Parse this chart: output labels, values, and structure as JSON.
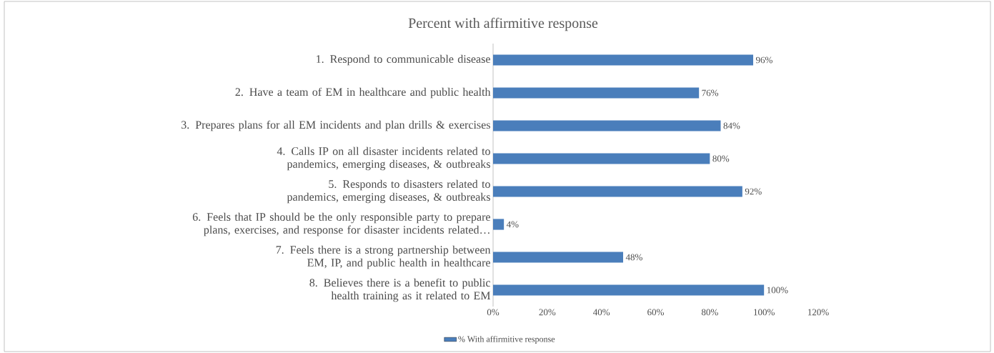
{
  "chart_data": {
    "type": "bar",
    "orientation": "horizontal",
    "title": "Percent with affirmitive response",
    "categories": [
      "1. Respond to communicable disease",
      "2. Have a team of EM in healthcare and public health",
      "3. Prepares plans for all EM incidents and plan drills & exercises",
      "4. Calls IP on all disaster incidents related to pandemics, emerging diseases, & outbreaks",
      "5. Responds to disasters related to pandemics, emerging diseases, & outbreaks",
      "6. Feels that IP should be the only responsible party to prepare plans, exercises, and response for disaster incidents related…",
      "7. Feels there is a strong partnership between EM, IP, and public health in healthcare",
      "8. Believes there is a benefit to public health training as it related to EM"
    ],
    "series": [
      {
        "name": "% With affirmitive response",
        "color": "#4a7ebb",
        "values": [
          96,
          76,
          84,
          80,
          92,
          4,
          48,
          100
        ],
        "value_labels": [
          "96%",
          "76%",
          "84%",
          "80%",
          "92%",
          "4%",
          "48%",
          "100%"
        ]
      }
    ],
    "xlim": [
      0,
      120
    ],
    "xticks": [
      {
        "value": 0,
        "label": "0%"
      },
      {
        "value": 20,
        "label": "20%"
      },
      {
        "value": 40,
        "label": "40%"
      },
      {
        "value": 60,
        "label": "60%"
      },
      {
        "value": 80,
        "label": "80%"
      },
      {
        "value": 100,
        "label": "100%"
      },
      {
        "value": 120,
        "label": "120%"
      }
    ],
    "legend": "bottom"
  }
}
